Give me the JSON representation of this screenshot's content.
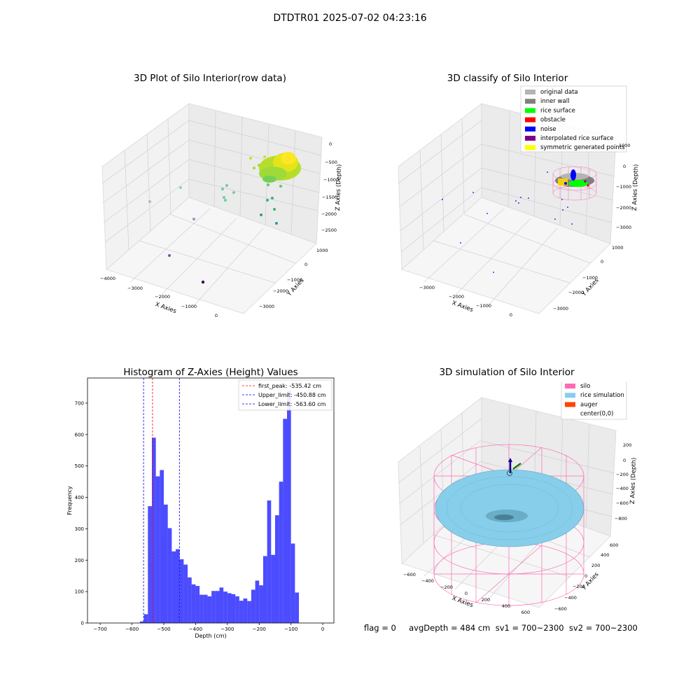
{
  "suptitle": "DTDTR01 2025-07-02 04:23:16",
  "panel1": {
    "title": "3D Plot of Silo Interior(row data)",
    "xlabel": "X Axies",
    "ylabel": "Y Axies",
    "zlabel": "Z Axies (Depth)",
    "xticks": [
      "−4000",
      "−3000",
      "−2000",
      "−1000",
      "0"
    ],
    "yticks": [
      "1000",
      "0",
      "−1000",
      "−2000",
      "−3000"
    ],
    "zticks": [
      "0",
      "−500",
      "−1000",
      "−1500",
      "−2000",
      "−2500"
    ]
  },
  "panel2": {
    "title": "3D classify of Silo Interior",
    "xlabel": "X Axies",
    "ylabel": "Y Axies",
    "zlabel": "Z Axies (Depth)",
    "xticks": [
      "−3000",
      "−2000",
      "−1000",
      "0"
    ],
    "yticks": [
      "1000",
      "0",
      "−1000",
      "−2000",
      "−3000"
    ],
    "zticks": [
      "1000",
      "0",
      "−1000",
      "−2000",
      "−3000"
    ],
    "legend": [
      {
        "label": "original data",
        "color": "#b4b4b4"
      },
      {
        "label": "inner wall",
        "color": "#808080"
      },
      {
        "label": "rice surface",
        "color": "#00ff00"
      },
      {
        "label": "obstacle",
        "color": "#ff0000"
      },
      {
        "label": "noise",
        "color": "#0000ff"
      },
      {
        "label": "interpolated rice surface",
        "color": "#800080"
      },
      {
        "label": "symmetric generated points",
        "color": "#ffff00"
      }
    ]
  },
  "panel4": {
    "title": "3D simulation of Silo Interior",
    "xlabel": "X Axies",
    "ylabel": "Y Axies",
    "zlabel": "Z Axies (Depth)",
    "xticks": [
      "−600",
      "−400",
      "−200",
      "0",
      "200",
      "400",
      "600"
    ],
    "yticks": [
      "600",
      "400",
      "200",
      "0",
      "−200",
      "−400",
      "−600"
    ],
    "zticks": [
      "200",
      "0",
      "−200",
      "−400",
      "−600",
      "−800"
    ],
    "legend": [
      {
        "label": "silo",
        "color": "#ff69b4"
      },
      {
        "label": "rice simulation",
        "color": "#87ceeb"
      },
      {
        "label": "auger",
        "color": "#ff4500"
      },
      {
        "label": "center(0,0)",
        "color": ""
      }
    ]
  },
  "footer": "flag = 0     avgDepth = 484 cm  sv1 = 700~2300  sv2 = 700~2300",
  "chart_data": {
    "type": "bar",
    "title": "Histogram of Z-Axies (Height) Values",
    "xlabel": "Depth (cm)",
    "ylabel": "Frequency",
    "xlim": [
      -740,
      35
    ],
    "ylim": [
      0,
      780
    ],
    "xticks": [
      -700,
      -600,
      -500,
      -400,
      -300,
      -200,
      -100,
      0
    ],
    "yticks": [
      0,
      100,
      200,
      300,
      400,
      500,
      600,
      700
    ],
    "bar_color": "#0000ff",
    "bin_start": -575,
    "bin_width": 12.5,
    "values": [
      5,
      28,
      372,
      590,
      467,
      487,
      377,
      302,
      228,
      235,
      203,
      186,
      145,
      123,
      118,
      90,
      90,
      85,
      102,
      102,
      113,
      100,
      95,
      92,
      85,
      71,
      78,
      70,
      106,
      135,
      120,
      213,
      390,
      217,
      343,
      450,
      650,
      740,
      253,
      97
    ],
    "reference_lines": [
      {
        "label": "first_peak: -535.42 cm",
        "x": -535.42,
        "color": "#ff0000"
      },
      {
        "label": "Upper_limit: -450.88 cm",
        "x": -450.88,
        "color": "#0000ff"
      },
      {
        "label": "Lower_limit: -563.60 cm",
        "x": -563.6,
        "color": "#0000ff"
      }
    ],
    "legend_position": "upper right"
  }
}
